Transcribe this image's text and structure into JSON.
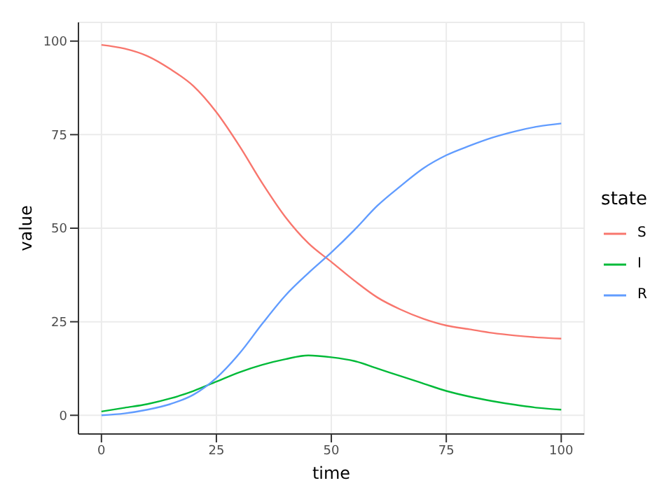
{
  "chart_data": {
    "type": "line",
    "xlabel": "time",
    "ylabel": "value",
    "legend_title": "state",
    "x": [
      0,
      5,
      10,
      15,
      20,
      25,
      30,
      35,
      40,
      45,
      50,
      55,
      60,
      65,
      70,
      75,
      80,
      85,
      90,
      95,
      100
    ],
    "series": [
      {
        "name": "S",
        "color": "#f8766d",
        "values": [
          99,
          98,
          96,
          92.5,
          88,
          81,
          72,
          62,
          53,
          46,
          41,
          36,
          31.5,
          28.3,
          25.8,
          24,
          23,
          22,
          21.3,
          20.8,
          20.5
        ]
      },
      {
        "name": "I",
        "color": "#00ba38",
        "values": [
          1,
          2,
          3,
          4.5,
          6.5,
          9,
          11.5,
          13.5,
          15,
          16,
          15.5,
          14.5,
          12.5,
          10.5,
          8.5,
          6.5,
          5,
          3.8,
          2.8,
          2,
          1.5
        ]
      },
      {
        "name": "R",
        "color": "#619cff",
        "values": [
          0,
          0.5,
          1.5,
          3,
          5.5,
          10,
          16.5,
          24.5,
          32,
          38,
          43.5,
          49.5,
          56,
          61.2,
          66,
          69.5,
          72,
          74.2,
          75.9,
          77.2,
          78
        ]
      }
    ],
    "xlim": [
      -5,
      105
    ],
    "ylim": [
      -5,
      105
    ],
    "xticks": [
      0,
      25,
      50,
      75,
      100
    ],
    "yticks": [
      0,
      25,
      50,
      75,
      100
    ],
    "grid": true,
    "legend": "right",
    "marker": "none",
    "line_style": "solid"
  }
}
